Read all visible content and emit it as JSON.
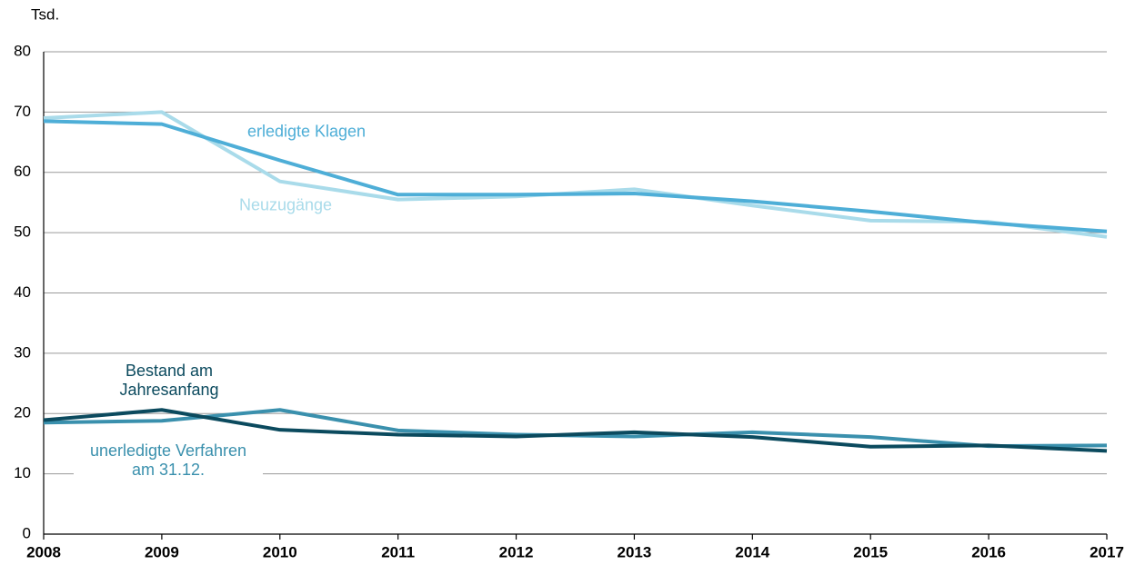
{
  "chart_data": {
    "type": "line",
    "y_label": "Tsd.",
    "x": [
      2008,
      2009,
      2010,
      2011,
      2012,
      2013,
      2014,
      2015,
      2016,
      2017
    ],
    "xlim": [
      2008,
      2017
    ],
    "xticks": [
      2008,
      2009,
      2010,
      2011,
      2012,
      2013,
      2014,
      2015,
      2016,
      2017
    ],
    "ylim": [
      0,
      80
    ],
    "yticks": [
      0,
      10,
      20,
      30,
      40,
      50,
      60,
      70,
      80
    ],
    "grid": true,
    "series": [
      {
        "name": "Neuzugänge",
        "color": "#a9dbea",
        "values": [
          69,
          70,
          58.5,
          55.5,
          56,
          57.2,
          54.5,
          52,
          51.8,
          49.3
        ]
      },
      {
        "name": "erledigte Klagen",
        "color": "#4eaed7",
        "values": [
          68.5,
          68,
          62,
          56.3,
          56.3,
          56.5,
          55.2,
          53.5,
          51.6,
          50.2
        ]
      },
      {
        "name": "unerledigte Verfahren am 31.12.",
        "color": "#3a90ad",
        "values": [
          18.5,
          18.8,
          20.6,
          17.2,
          16.5,
          16.2,
          16.9,
          16.1,
          14.6,
          14.7
        ]
      },
      {
        "name": "Bestand am Jahresanfang",
        "color": "#0b4a5e",
        "values": [
          18.9,
          20.6,
          17.3,
          16.5,
          16.2,
          16.9,
          16.1,
          14.5,
          14.7,
          13.8
        ]
      }
    ]
  }
}
